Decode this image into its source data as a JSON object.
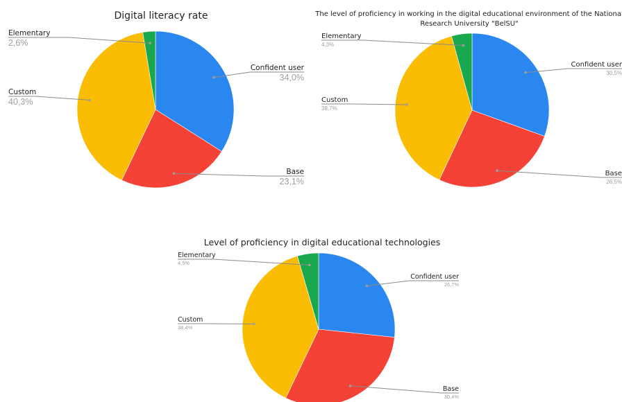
{
  "colors": {
    "Confident user": "#2b87f0",
    "Base": "#f44336",
    "Custom": "#fbbc04",
    "Elementary": "#1aa84f"
  },
  "chart_data": [
    {
      "type": "pie",
      "title": "Digital literacy rate",
      "categories": [
        "Confident user",
        "Base",
        "Custom",
        "Elementary"
      ],
      "values": [
        34.0,
        23.1,
        40.3,
        2.6
      ],
      "value_labels": [
        "34,0%",
        "23,1%",
        "40,3%",
        "2,6%"
      ]
    },
    {
      "type": "pie",
      "title_lines": [
        "The level of proficiency in working in the digital educational environment of the National",
        "Research University \"BelSU\""
      ],
      "categories": [
        "Confident user",
        "Base",
        "Custom",
        "Elementary"
      ],
      "values": [
        30.5,
        26.5,
        38.7,
        4.3
      ],
      "value_labels": [
        "30,5%",
        "26,5%",
        "38,7%",
        "4,3%"
      ]
    },
    {
      "type": "pie",
      "title": "Level of proficiency in digital educational technologies",
      "categories": [
        "Confident user",
        "Base",
        "Custom",
        "Elementary"
      ],
      "values": [
        26.7,
        30.4,
        38.4,
        4.5
      ],
      "value_labels": [
        "26,7%",
        "30,4%",
        "38,4%",
        "4,5%"
      ]
    }
  ]
}
